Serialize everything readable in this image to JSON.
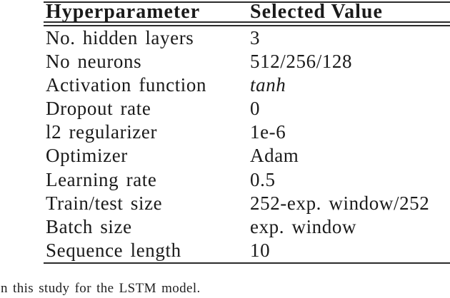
{
  "table": {
    "headers": [
      "Hyperparameter",
      "Selected Value"
    ],
    "rows": [
      {
        "param": "No. hidden layers",
        "value": "3"
      },
      {
        "param": "No neurons",
        "value": "512/256/128"
      },
      {
        "param": "Activation function",
        "value": "tanh"
      },
      {
        "param": "Dropout rate",
        "value": "0"
      },
      {
        "param": "l2 regularizer",
        "value": "1e-6"
      },
      {
        "param": "Optimizer",
        "value": "Adam"
      },
      {
        "param": "Learning rate",
        "value": "0.5"
      },
      {
        "param": "Train/test size",
        "value": "252-exp. window/252"
      },
      {
        "param": "Batch size",
        "value": "exp. window"
      },
      {
        "param": "Sequence length",
        "value": "10"
      }
    ]
  },
  "caption": {
    "text": "n this study for the LSTM model."
  }
}
